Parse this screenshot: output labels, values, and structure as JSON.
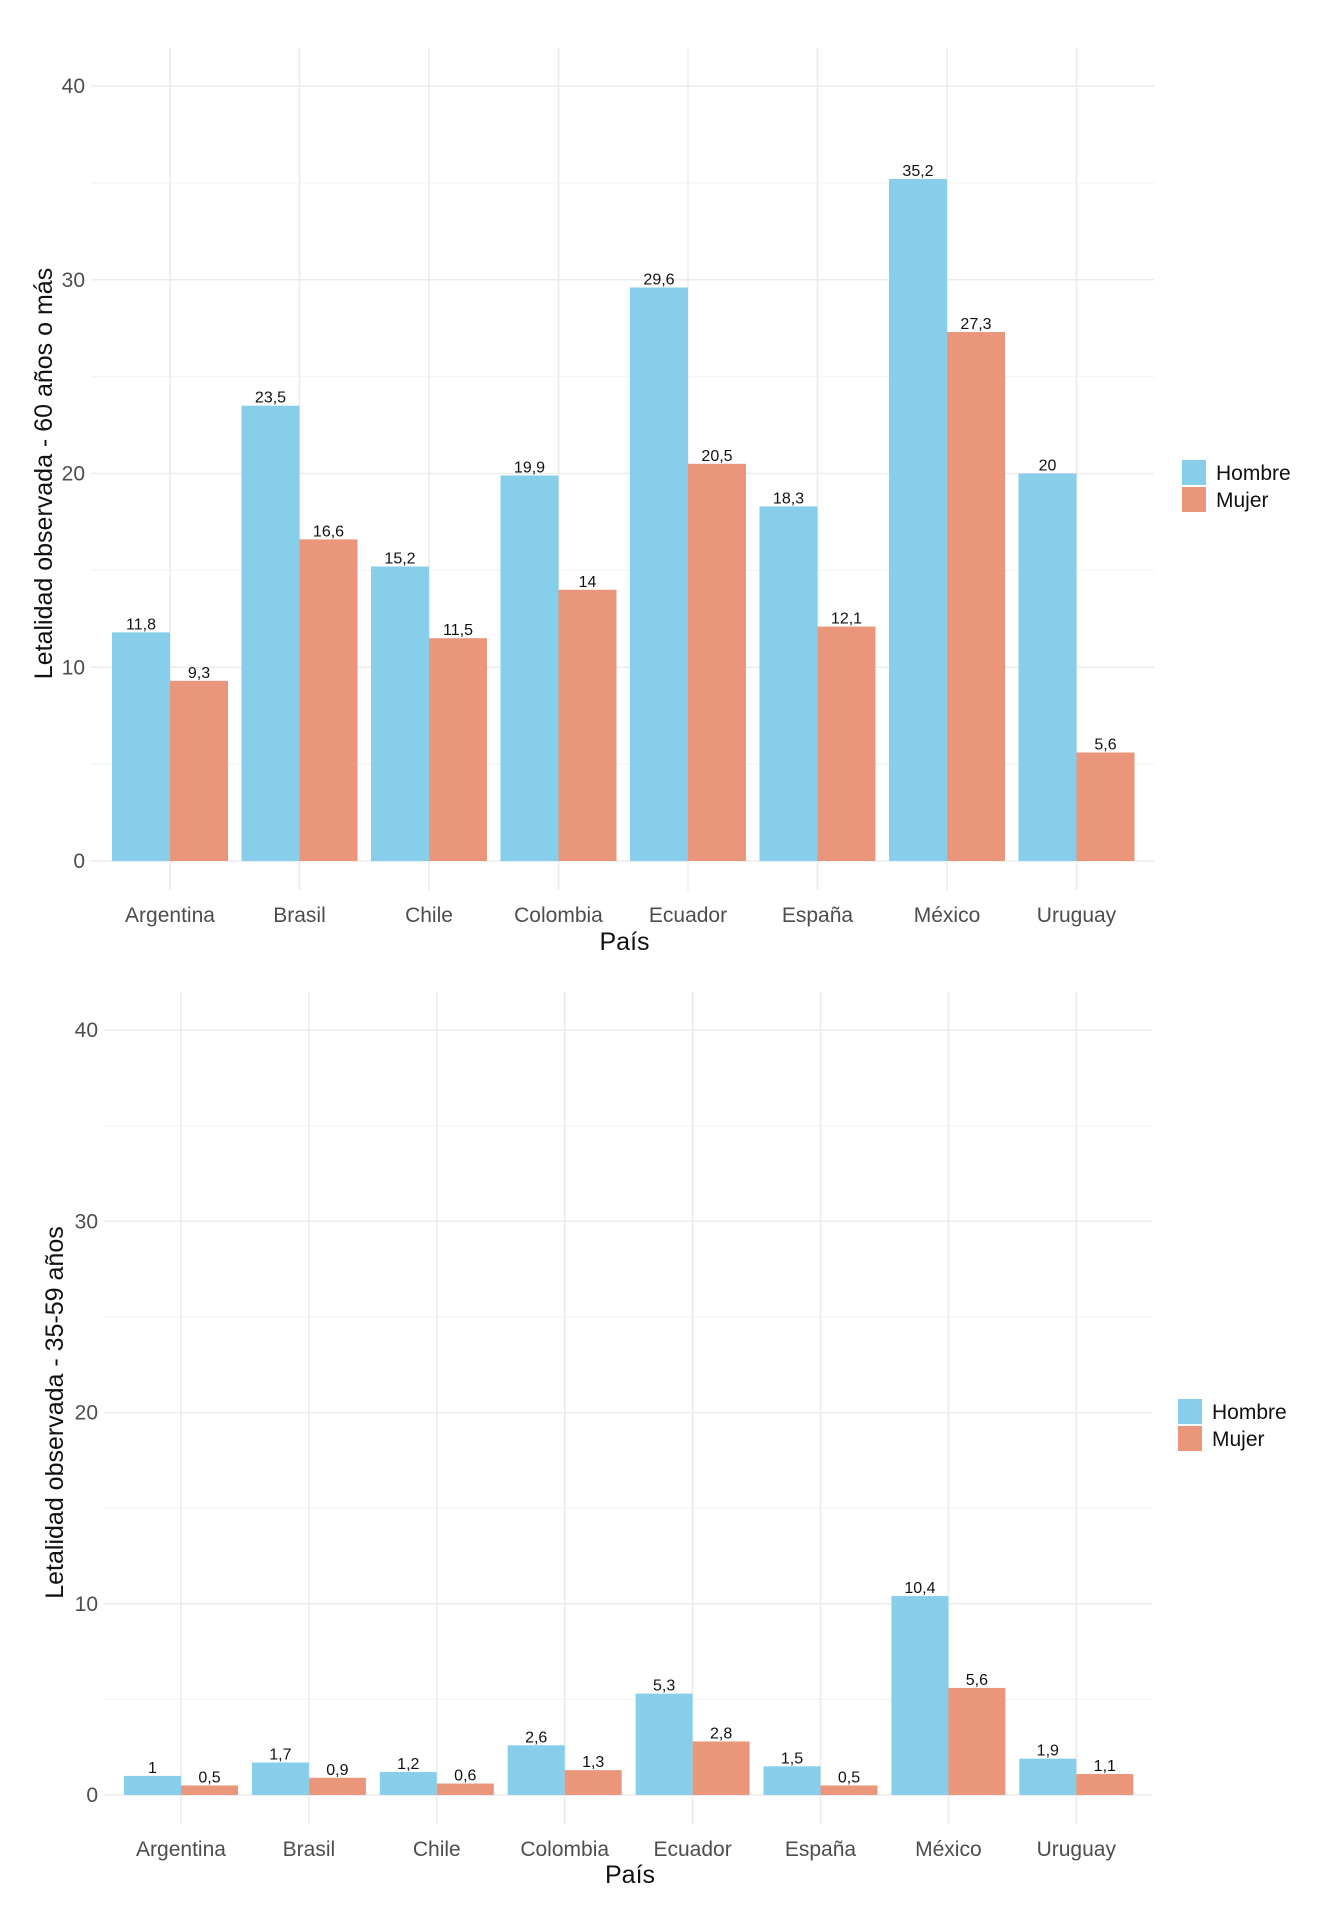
{
  "chart_data": [
    {
      "type": "bar",
      "title": "",
      "xlabel": "País",
      "ylabel": "Letalidad observada - 60 años o más",
      "ylim": [
        0,
        40
      ],
      "yticks": [
        0,
        10,
        20,
        30,
        40
      ],
      "ytick_labels": [
        "0",
        "10",
        "20",
        "30",
        "40"
      ],
      "grid": true,
      "legend_position": "right",
      "categories": [
        "Argentina",
        "Brasil",
        "Chile",
        "Colombia",
        "Ecuador",
        "España",
        "México",
        "Uruguay"
      ],
      "series": [
        {
          "name": "Hombre",
          "color": "#87CEEB",
          "values": [
            11.8,
            23.5,
            15.2,
            19.9,
            29.6,
            18.3,
            35.2,
            20
          ],
          "labels": [
            "11,8",
            "23,5",
            "15,2",
            "19,9",
            "29,6",
            "18,3",
            "35,2",
            "20"
          ]
        },
        {
          "name": "Mujer",
          "color": "#E9967A",
          "values": [
            9.3,
            16.6,
            11.5,
            14,
            20.5,
            12.1,
            27.3,
            5.6
          ],
          "labels": [
            "9,3",
            "16,6",
            "11,5",
            "14",
            "20,5",
            "12,1",
            "27,3",
            "5,6"
          ]
        }
      ]
    },
    {
      "type": "bar",
      "title": "",
      "xlabel": "País",
      "ylabel": "Letalidad observada - 35-59 años",
      "ylim": [
        0,
        40
      ],
      "yticks": [
        0,
        10,
        20,
        30,
        40
      ],
      "ytick_labels": [
        "0",
        "10",
        "20",
        "30",
        "40"
      ],
      "grid": true,
      "legend_position": "right",
      "categories": [
        "Argentina",
        "Brasil",
        "Chile",
        "Colombia",
        "Ecuador",
        "España",
        "México",
        "Uruguay"
      ],
      "series": [
        {
          "name": "Hombre",
          "color": "#87CEEB",
          "values": [
            1,
            1.7,
            1.2,
            2.6,
            5.3,
            1.5,
            10.4,
            1.9
          ],
          "labels": [
            "1",
            "1,7",
            "1,2",
            "2,6",
            "5,3",
            "1,5",
            "10,4",
            "1,9"
          ]
        },
        {
          "name": "Mujer",
          "color": "#E9967A",
          "values": [
            0.5,
            0.9,
            0.6,
            1.3,
            2.8,
            0.5,
            5.6,
            1.1
          ],
          "labels": [
            "0,5",
            "0,9",
            "0,6",
            "1,3",
            "2,8",
            "0,5",
            "5,6",
            "1,1"
          ]
        }
      ]
    }
  ]
}
